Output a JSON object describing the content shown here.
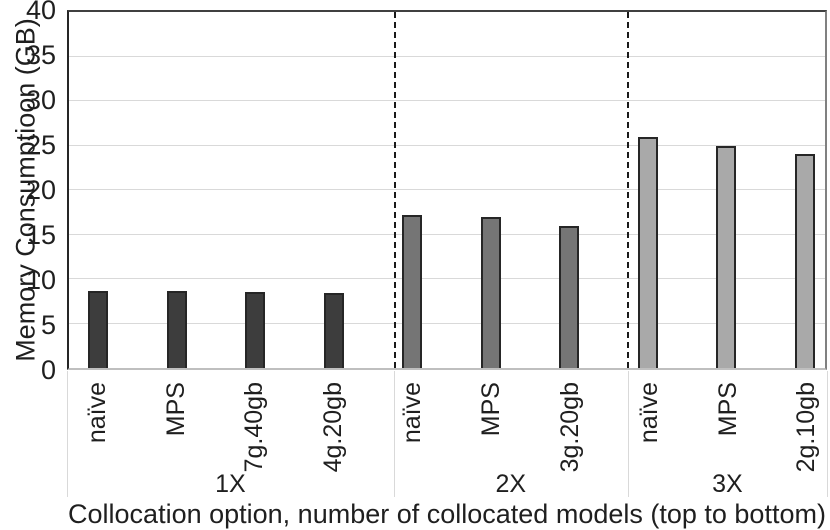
{
  "chart_data": {
    "type": "bar",
    "title": "",
    "ylabel": "Memory Consumptioon (GB)",
    "xlabel": "Collocation option, number of collocated models (top to bottom)",
    "ylim": [
      0,
      40
    ],
    "yticks": [
      0,
      5,
      10,
      15,
      20,
      25,
      30,
      35,
      40
    ],
    "grid": true,
    "group_separator_style": "vertical dashed lines",
    "groups": [
      {
        "label": "1X",
        "bar_color": "#3d3d3d",
        "categories": [
          "naïve",
          "MPS",
          "7g.40gb",
          "4g.20gb"
        ],
        "values": [
          8.6,
          8.6,
          8.5,
          8.4
        ]
      },
      {
        "label": "2X",
        "bar_color": "#757575",
        "categories": [
          "naïve",
          "MPS",
          "3g.20gb"
        ],
        "values": [
          17.2,
          17,
          16
        ]
      },
      {
        "label": "3X",
        "bar_color": "#a9a9a9",
        "categories": [
          "naïve",
          "MPS",
          "2g.10gb"
        ],
        "values": [
          26,
          25,
          24
        ]
      }
    ],
    "colors": {
      "gridline": "#d9d9d9",
      "bar_border": "#262626",
      "separator": "#1a1a1a",
      "text": "#1f1f1f"
    }
  }
}
